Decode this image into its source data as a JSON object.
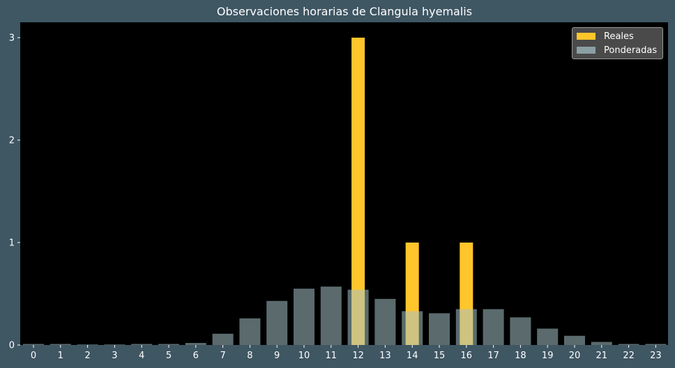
{
  "chart_data": {
    "type": "bar",
    "title": "Observaciones horarias de Clangula hyemalis",
    "xlabel": "",
    "ylabel": "",
    "categories": [
      "0",
      "1",
      "2",
      "3",
      "4",
      "5",
      "6",
      "7",
      "8",
      "9",
      "10",
      "11",
      "12",
      "13",
      "14",
      "15",
      "16",
      "17",
      "18",
      "19",
      "20",
      "21",
      "22",
      "23"
    ],
    "ylim": [
      0,
      3.15
    ],
    "yticks": [
      "0",
      "1",
      "2",
      "3"
    ],
    "series": [
      {
        "name": "Reales",
        "color": "#ffc62b",
        "values": [
          0,
          0,
          0,
          0,
          0,
          0,
          0,
          0,
          0,
          0,
          0,
          0,
          3,
          0,
          1,
          0,
          1,
          0,
          0,
          0,
          0,
          0,
          0,
          0
        ]
      },
      {
        "name": "Ponderadas",
        "color": "#a5c2c6",
        "values": [
          0.01,
          0.01,
          0.005,
          0.005,
          0.01,
          0.01,
          0.02,
          0.11,
          0.26,
          0.43,
          0.55,
          0.57,
          0.54,
          0.45,
          0.33,
          0.31,
          0.35,
          0.35,
          0.27,
          0.16,
          0.09,
          0.03,
          0.01,
          0.01
        ]
      }
    ],
    "legend_position": "top-right",
    "grid": false
  },
  "colors": {
    "figure_background": "#3f5663",
    "plot_background": "#000000",
    "text": "#ffffff"
  }
}
